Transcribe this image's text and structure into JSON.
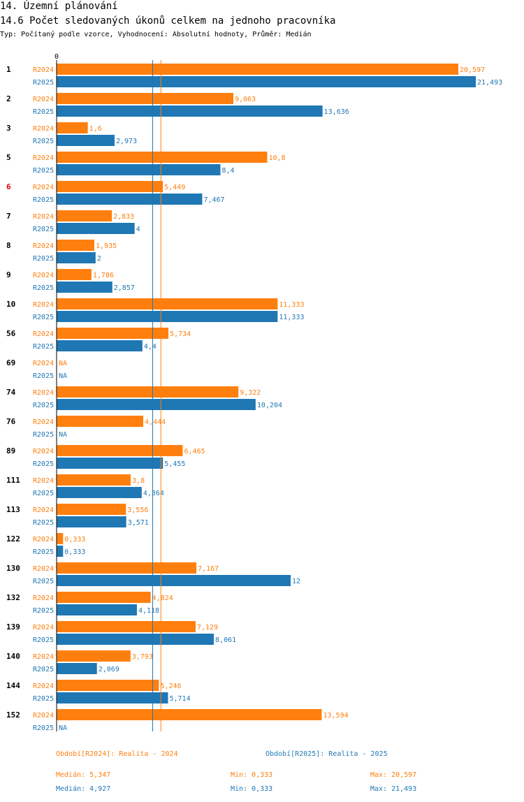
{
  "header": {
    "title": "14. Územní plánování",
    "subtitle": "14.6 Počet sledovaných úkonů celkem na jednoho pracovníka",
    "info": "Typ: Počítaný podle vzorce, Vyhodnocení: Absolutní hodnoty, Průměr: Medián"
  },
  "colors": {
    "r2024": "#ff7f0e",
    "r2025": "#1f77b4",
    "highlight": "#e60000",
    "text": "#000000"
  },
  "chart_data": {
    "type": "bar",
    "orientation": "horizontal",
    "axis_zero_label": "0",
    "xlim": [
      0,
      21.493
    ],
    "highlight_category": "6",
    "categories": [
      "1",
      "2",
      "3",
      "5",
      "6",
      "7",
      "8",
      "9",
      "10",
      "56",
      "69",
      "74",
      "76",
      "89",
      "111",
      "113",
      "122",
      "130",
      "132",
      "139",
      "140",
      "144",
      "152"
    ],
    "series": [
      {
        "name": "R2024",
        "values": [
          20.597,
          9.063,
          1.6,
          10.8,
          5.449,
          2.833,
          1.935,
          1.786,
          11.333,
          5.734,
          null,
          9.322,
          4.444,
          6.465,
          3.8,
          3.556,
          0.333,
          7.167,
          4.824,
          7.129,
          3.793,
          5.246,
          13.594
        ],
        "labels": [
          "20,597",
          "9,063",
          "1,6",
          "10,8",
          "5,449",
          "2,833",
          "1,935",
          "1,786",
          "11,333",
          "5,734",
          "NA",
          "9,322",
          "4,444",
          "6,465",
          "3,8",
          "3,556",
          "0,333",
          "7,167",
          "4,824",
          "7,129",
          "3,793",
          "5,246",
          "13,594"
        ]
      },
      {
        "name": "R2025",
        "values": [
          21.493,
          13.636,
          2.973,
          8.4,
          7.467,
          4,
          2,
          2.857,
          11.333,
          4.4,
          null,
          10.204,
          null,
          5.455,
          4.364,
          3.571,
          0.333,
          12,
          4.118,
          8.061,
          2.069,
          5.714,
          null
        ],
        "labels": [
          "21,493",
          "13,636",
          "2,973",
          "8,4",
          "7,467",
          "4",
          "2",
          "2,857",
          "11,333",
          "4,4",
          "NA",
          "10,204",
          "NA",
          "5,455",
          "4,364",
          "3,571",
          "0,333",
          "12",
          "4,118",
          "8,061",
          "2,069",
          "5,714",
          "NA"
        ]
      }
    ],
    "median_lines": {
      "R2024": 5.347,
      "R2025": 4.927
    }
  },
  "legend": {
    "r2024": "Období[R2024]: Realita - 2024",
    "r2025": "Období[R2025]: Realita - 2025"
  },
  "stats": {
    "r2024": {
      "median": "Medián: 5,347",
      "min": "Min: 0,333",
      "max": "Max: 20,597"
    },
    "r2025": {
      "median": "Medián: 4,927",
      "min": "Min: 0,333",
      "max": "Max: 21,493"
    }
  }
}
